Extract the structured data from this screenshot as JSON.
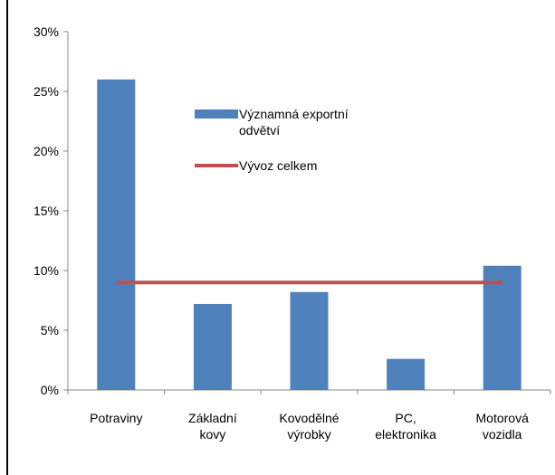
{
  "chart_data": {
    "type": "bar",
    "categories": [
      "Potraviny",
      "Základní\nkovy",
      "Kovodělné\nvýrobky",
      "PC,\nelektronika",
      "Motorová\nvozidla"
    ],
    "series": [
      {
        "name": "Významná exportní odvětví",
        "type": "bar",
        "color": "#4f81bd",
        "values": [
          26,
          7.2,
          8.2,
          2.6,
          10.4
        ]
      },
      {
        "name": "Vývoz celkem",
        "type": "line",
        "color": "#c0504d",
        "values": [
          9,
          9,
          9,
          9,
          9
        ]
      }
    ],
    "ylim": [
      0,
      30
    ],
    "yticks": [
      {
        "value": 0,
        "label": "0%"
      },
      {
        "value": 5,
        "label": "5%"
      },
      {
        "value": 10,
        "label": "10%"
      },
      {
        "value": 15,
        "label": "15%"
      },
      {
        "value": 20,
        "label": "20%"
      },
      {
        "value": 25,
        "label": "25%"
      },
      {
        "value": 30,
        "label": "30%"
      }
    ],
    "grid": false
  }
}
